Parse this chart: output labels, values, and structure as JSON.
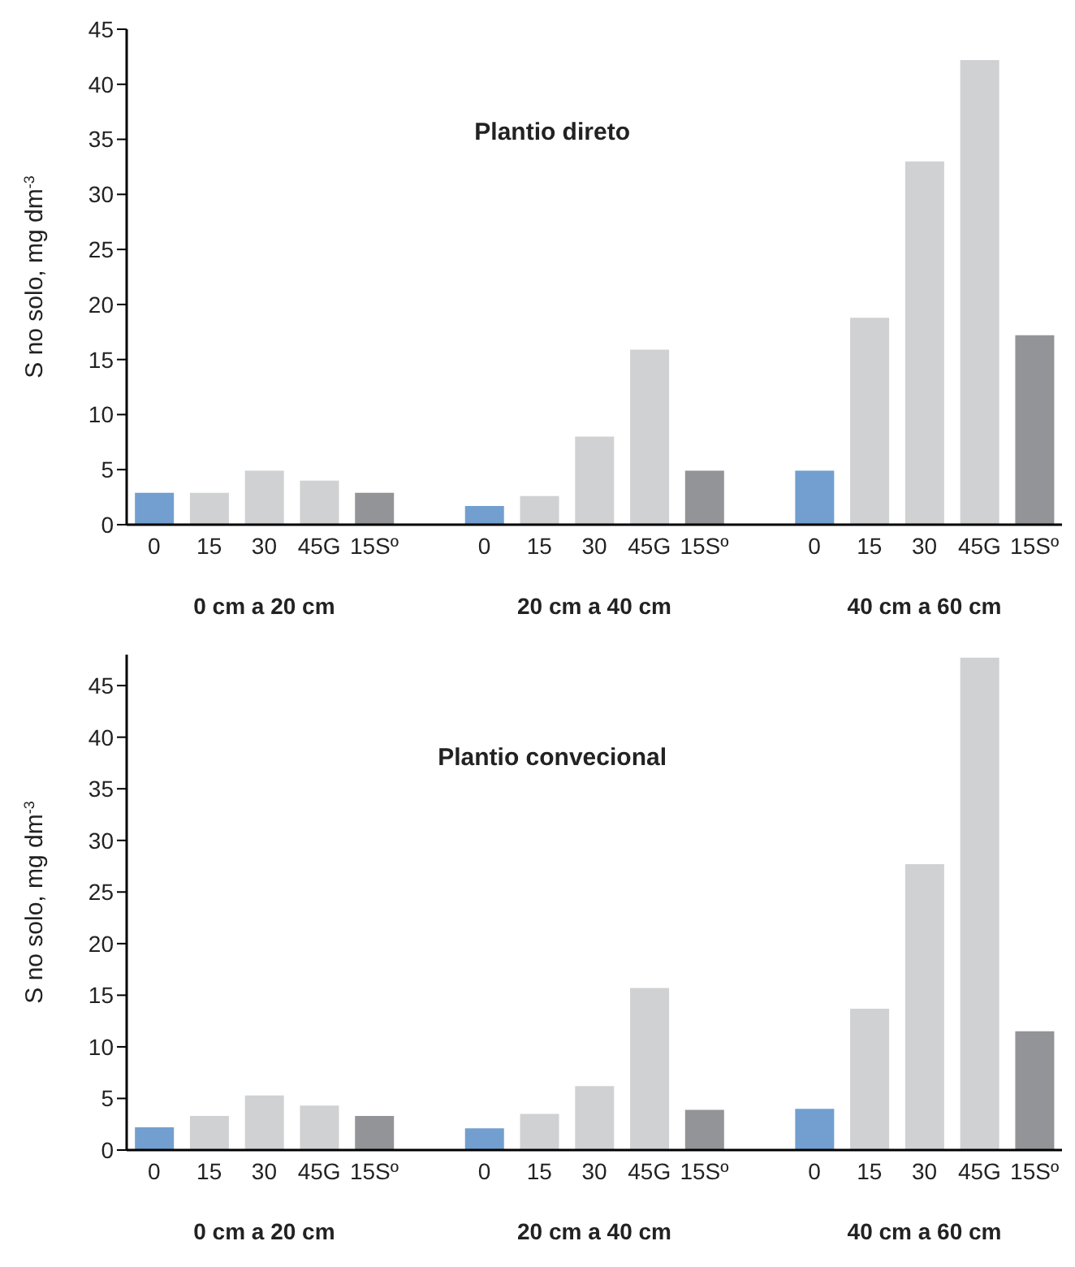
{
  "chart_data": [
    {
      "type": "bar",
      "title": "Plantio direto",
      "ylabel": "S no solo, mg dm$^{-3}$",
      "categories": [
        "0",
        "15",
        "30",
        "45G",
        "15Sº",
        null,
        "0",
        "15",
        "30",
        "45G",
        "15Sº",
        null,
        "0",
        "15",
        "30",
        "45G",
        "15Sº"
      ],
      "values": [
        2.9,
        2.9,
        4.9,
        4,
        2.9,
        null,
        1.7,
        2.6,
        8,
        15.9,
        4.9,
        null,
        4.9,
        18.8,
        33,
        42.2,
        17.2
      ],
      "colors": [
        "#729fcf",
        "#d0d1d3",
        "#d0d1d3",
        "#d0d1d3",
        "#939497",
        "#ffffff",
        "#729fcf",
        "#d0d1d3",
        "#d0d1d3",
        "#d0d1d3",
        "#939497",
        "#ffffff",
        "#729fcf",
        "#d0d1d3",
        "#d0d1d3",
        "#d0d1d3",
        "#939497"
      ],
      "ylim": [
        0,
        45
      ],
      "yticks": [
        0,
        5,
        10,
        15,
        20,
        25,
        30,
        35,
        40,
        45
      ],
      "annotations": [
        "0 cm a 20 cm",
        "20 cm a 40 cm",
        "40 cm a 60 cm"
      ]
    },
    {
      "type": "bar",
      "title": "Plantio convecional",
      "ylabel": "S no solo, mg dm$^{-3}$",
      "categories": [
        "0",
        "15",
        "30",
        "45G",
        "15Sº",
        null,
        "0",
        "15",
        "30",
        "45G",
        "15Sº",
        null,
        "0",
        "15",
        "30",
        "45G",
        "15Sº"
      ],
      "values": [
        2.2,
        3.3,
        5.3,
        4.3,
        3.3,
        null,
        2.1,
        3.5,
        6.2,
        15.7,
        3.9,
        null,
        4,
        13.7,
        27.7,
        47.7,
        11.5
      ],
      "colors": [
        "#729fcf",
        "#d0d1d3",
        "#d0d1d3",
        "#d0d1d3",
        "#939497",
        "#ffffff",
        "#729fcf",
        "#d0d1d3",
        "#d0d1d3",
        "#d0d1d3",
        "#939497",
        "#ffffff",
        "#729fcf",
        "#d0d1d3",
        "#d0d1d3",
        "#d0d1d3",
        "#939497"
      ],
      "ylim": [
        0,
        48
      ],
      "yticks": [
        0,
        5,
        10,
        15,
        20,
        25,
        30,
        35,
        40,
        45
      ],
      "annotations": [
        "0 cm a 20 cm",
        "20 cm a 40 cm",
        "40 cm a 60 cm"
      ]
    }
  ]
}
